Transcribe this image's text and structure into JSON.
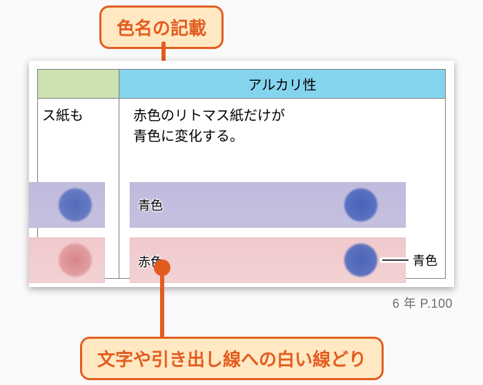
{
  "callouts": {
    "top": "色名の記載",
    "bottom": "文字や引き出し線への白い線どり"
  },
  "table": {
    "header_left_bg": "#cee2b1",
    "header_right_bg": "#85d4ee",
    "header_left": "",
    "header_right": "アルカリ性",
    "left_cell_text": "ス紙も",
    "right_desc": "赤色のリトマス紙だけが\n青色に変化する。"
  },
  "labels": {
    "blue_strip_label": "青色",
    "red_strip_label": "赤色",
    "leader_label": "青色"
  },
  "colors": {
    "accent": "#e35c1f",
    "accent_fill": "#ffe8c2",
    "strip_blue": "#c0bbdd",
    "strip_pink": "#f0c9cb",
    "dot_blue": "#3b59b5",
    "dot_pink": "#d57e81"
  },
  "pageref": "6 年 P.100"
}
